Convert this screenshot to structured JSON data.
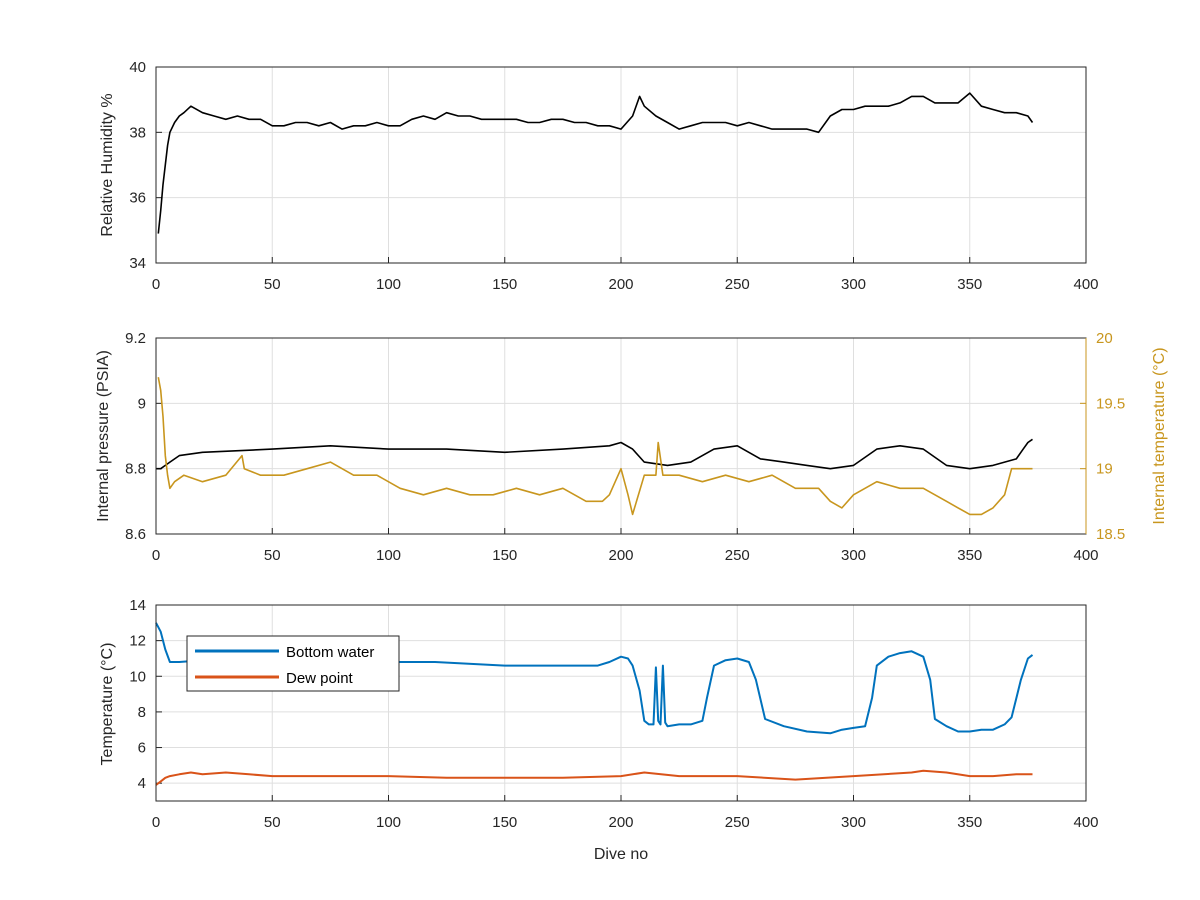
{
  "chart_data": [
    {
      "type": "line",
      "ylabel": "Relative Humidity %",
      "xlabel": "",
      "xlim": [
        0,
        400
      ],
      "ylim": [
        34,
        40
      ],
      "xticks": [
        0,
        50,
        100,
        150,
        200,
        250,
        300,
        350,
        400
      ],
      "yticks": [
        34,
        36,
        38,
        40
      ],
      "grid": true,
      "series": [
        {
          "color": "#000000",
          "x": [
            1,
            2,
            3,
            4,
            5,
            6,
            8,
            10,
            12,
            15,
            20,
            25,
            30,
            35,
            40,
            45,
            50,
            55,
            60,
            65,
            70,
            75,
            80,
            85,
            90,
            95,
            100,
            105,
            110,
            115,
            120,
            125,
            130,
            135,
            140,
            145,
            150,
            155,
            160,
            165,
            170,
            175,
            180,
            185,
            190,
            195,
            200,
            205,
            208,
            210,
            215,
            220,
            225,
            230,
            235,
            240,
            245,
            250,
            255,
            260,
            265,
            270,
            275,
            280,
            285,
            290,
            295,
            300,
            305,
            310,
            315,
            320,
            325,
            330,
            335,
            340,
            345,
            350,
            355,
            360,
            365,
            370,
            375,
            377
          ],
          "y": [
            34.9,
            35.6,
            36.4,
            37.0,
            37.6,
            38.0,
            38.3,
            38.5,
            38.6,
            38.8,
            38.6,
            38.5,
            38.4,
            38.5,
            38.4,
            38.4,
            38.2,
            38.2,
            38.3,
            38.3,
            38.2,
            38.3,
            38.1,
            38.2,
            38.2,
            38.3,
            38.2,
            38.2,
            38.4,
            38.5,
            38.4,
            38.6,
            38.5,
            38.5,
            38.4,
            38.4,
            38.4,
            38.4,
            38.3,
            38.3,
            38.4,
            38.4,
            38.3,
            38.3,
            38.2,
            38.2,
            38.1,
            38.5,
            39.1,
            38.8,
            38.5,
            38.3,
            38.1,
            38.2,
            38.3,
            38.3,
            38.3,
            38.2,
            38.3,
            38.2,
            38.1,
            38.1,
            38.1,
            38.1,
            38.0,
            38.5,
            38.7,
            38.7,
            38.8,
            38.8,
            38.8,
            38.9,
            39.1,
            39.1,
            38.9,
            38.9,
            38.9,
            39.2,
            38.8,
            38.7,
            38.6,
            38.6,
            38.5,
            38.3
          ]
        }
      ]
    },
    {
      "type": "line",
      "ylabel": "Internal pressure (PSIA)",
      "y2label": "Internal temperature (°C)",
      "xlabel": "",
      "xlim": [
        0,
        400
      ],
      "ylim": [
        8.6,
        9.2
      ],
      "y2lim": [
        18.5,
        20
      ],
      "xticks": [
        0,
        50,
        100,
        150,
        200,
        250,
        300,
        350,
        400
      ],
      "yticks": [
        8.6,
        8.8,
        9,
        9.2
      ],
      "y2ticks": [
        18.5,
        19,
        19.5,
        20
      ],
      "grid": true,
      "series": [
        {
          "axis": "left",
          "color": "#000000",
          "x": [
            0,
            2,
            4,
            6,
            10,
            20,
            50,
            75,
            100,
            125,
            150,
            175,
            195,
            200,
            205,
            210,
            220,
            230,
            240,
            250,
            260,
            270,
            280,
            290,
            300,
            310,
            320,
            330,
            340,
            350,
            360,
            365,
            370,
            373,
            375,
            377
          ],
          "y": [
            8.8,
            8.8,
            8.81,
            8.82,
            8.84,
            8.85,
            8.86,
            8.87,
            8.86,
            8.86,
            8.85,
            8.86,
            8.87,
            8.88,
            8.86,
            8.82,
            8.81,
            8.82,
            8.86,
            8.87,
            8.83,
            8.82,
            8.81,
            8.8,
            8.81,
            8.86,
            8.87,
            8.86,
            8.81,
            8.8,
            8.81,
            8.82,
            8.83,
            8.86,
            8.88,
            8.89
          ]
        },
        {
          "axis": "right",
          "color": "#c8961e",
          "x": [
            1,
            2,
            3,
            4,
            5,
            6,
            8,
            12,
            20,
            30,
            37,
            38,
            45,
            55,
            65,
            75,
            85,
            95,
            105,
            115,
            125,
            135,
            145,
            155,
            165,
            175,
            185,
            192,
            195,
            200,
            203,
            205,
            210,
            215,
            216,
            218,
            225,
            235,
            245,
            255,
            265,
            275,
            285,
            290,
            295,
            300,
            310,
            320,
            330,
            340,
            345,
            350,
            355,
            360,
            365,
            368,
            372,
            377
          ],
          "y": [
            19.7,
            19.6,
            19.4,
            19.1,
            18.95,
            18.85,
            18.9,
            18.95,
            18.9,
            18.95,
            19.1,
            19.0,
            18.95,
            18.95,
            19.0,
            19.05,
            18.95,
            18.95,
            18.85,
            18.8,
            18.85,
            18.8,
            18.8,
            18.85,
            18.8,
            18.85,
            18.75,
            18.75,
            18.8,
            19.0,
            18.8,
            18.65,
            18.95,
            18.95,
            19.2,
            18.95,
            18.95,
            18.9,
            18.95,
            18.9,
            18.95,
            18.85,
            18.85,
            18.75,
            18.7,
            18.8,
            18.9,
            18.85,
            18.85,
            18.75,
            18.7,
            18.65,
            18.65,
            18.7,
            18.8,
            19.0,
            19.0,
            19.0
          ]
        }
      ]
    },
    {
      "type": "line",
      "ylabel": "Temperature (°C)",
      "xlabel": "Dive no",
      "xlim": [
        0,
        400
      ],
      "ylim": [
        3,
        14
      ],
      "xticks": [
        0,
        50,
        100,
        150,
        200,
        250,
        300,
        350,
        400
      ],
      "yticks": [
        4,
        6,
        8,
        10,
        12,
        14
      ],
      "grid": true,
      "legend": "top-left",
      "series": [
        {
          "name": "Bottom water",
          "color": "#0072bd",
          "x": [
            0,
            2,
            4,
            6,
            10,
            20,
            40,
            60,
            80,
            100,
            120,
            150,
            175,
            190,
            195,
            200,
            203,
            205,
            208,
            210,
            212,
            214,
            215,
            216,
            217,
            218,
            219,
            220,
            225,
            230,
            235,
            237,
            240,
            245,
            250,
            255,
            258,
            262,
            270,
            280,
            290,
            295,
            300,
            305,
            308,
            310,
            315,
            320,
            325,
            330,
            333,
            335,
            340,
            345,
            350,
            355,
            360,
            365,
            368,
            372,
            375,
            377
          ],
          "y": [
            13.0,
            12.5,
            11.5,
            10.8,
            10.8,
            10.9,
            10.9,
            10.8,
            10.8,
            10.8,
            10.8,
            10.6,
            10.6,
            10.6,
            10.8,
            11.1,
            11.0,
            10.6,
            9.2,
            7.5,
            7.3,
            7.3,
            10.5,
            7.5,
            7.3,
            10.6,
            7.4,
            7.2,
            7.3,
            7.3,
            7.5,
            8.8,
            10.6,
            10.9,
            11.0,
            10.8,
            9.8,
            7.6,
            7.2,
            6.9,
            6.8,
            7.0,
            7.1,
            7.2,
            8.8,
            10.6,
            11.1,
            11.3,
            11.4,
            11.1,
            9.8,
            7.6,
            7.2,
            6.9,
            6.9,
            7.0,
            7.0,
            7.3,
            7.7,
            9.8,
            11.0,
            11.2
          ]
        },
        {
          "name": "Dew point",
          "color": "#d95319",
          "x": [
            0,
            2,
            4,
            6,
            10,
            15,
            20,
            30,
            40,
            50,
            75,
            100,
            125,
            150,
            175,
            200,
            210,
            225,
            250,
            275,
            300,
            325,
            330,
            340,
            350,
            360,
            370,
            377
          ],
          "y": [
            3.9,
            4.1,
            4.3,
            4.4,
            4.5,
            4.6,
            4.5,
            4.6,
            4.5,
            4.4,
            4.4,
            4.4,
            4.3,
            4.3,
            4.3,
            4.4,
            4.6,
            4.4,
            4.4,
            4.2,
            4.4,
            4.6,
            4.7,
            4.6,
            4.4,
            4.4,
            4.5,
            4.5
          ]
        }
      ]
    }
  ]
}
